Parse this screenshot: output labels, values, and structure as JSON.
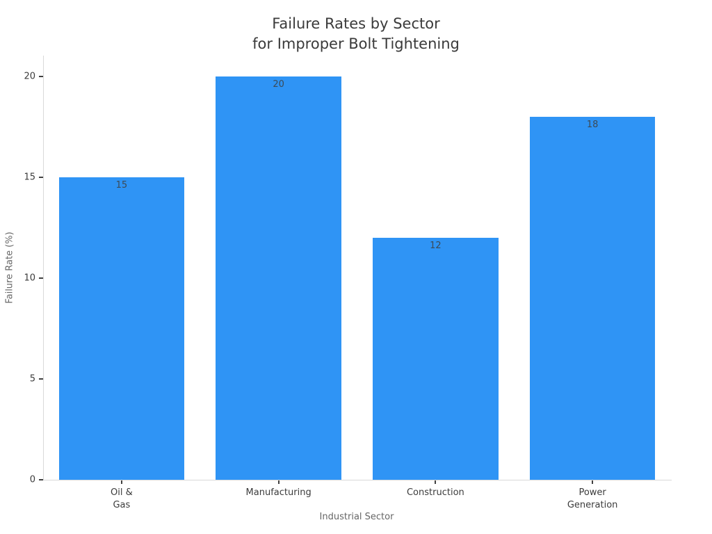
{
  "figure": {
    "background": "#ffffff"
  },
  "chart_data": {
    "type": "bar",
    "title": "Failure Rates by Sector\nfor Improper Bolt Tightening",
    "xlabel": "Industrial Sector",
    "ylabel": "Failure Rate (%)",
    "categories": [
      "Oil &\nGas",
      "Manufacturing",
      "Construction",
      "Power\nGeneration"
    ],
    "values": [
      15,
      20,
      12,
      18
    ],
    "bar_labels": [
      "15",
      "20",
      "12",
      "18"
    ],
    "yticks": [
      0,
      5,
      10,
      15,
      20
    ],
    "ytick_labels": [
      "0",
      "5",
      "10",
      "15",
      "20"
    ],
    "ylim": [
      0,
      21.03
    ],
    "grid": false,
    "legend": null,
    "bar_width_fraction": 0.8,
    "colors": {
      "bar": "#2f94f5",
      "bar_value_label": "#3c4a56",
      "title": "#3a3a3a",
      "axis_title": "#666666",
      "tick_label": "#3b3b3b",
      "spine": "#d9d9d9",
      "tick_mark": "#404040"
    }
  }
}
